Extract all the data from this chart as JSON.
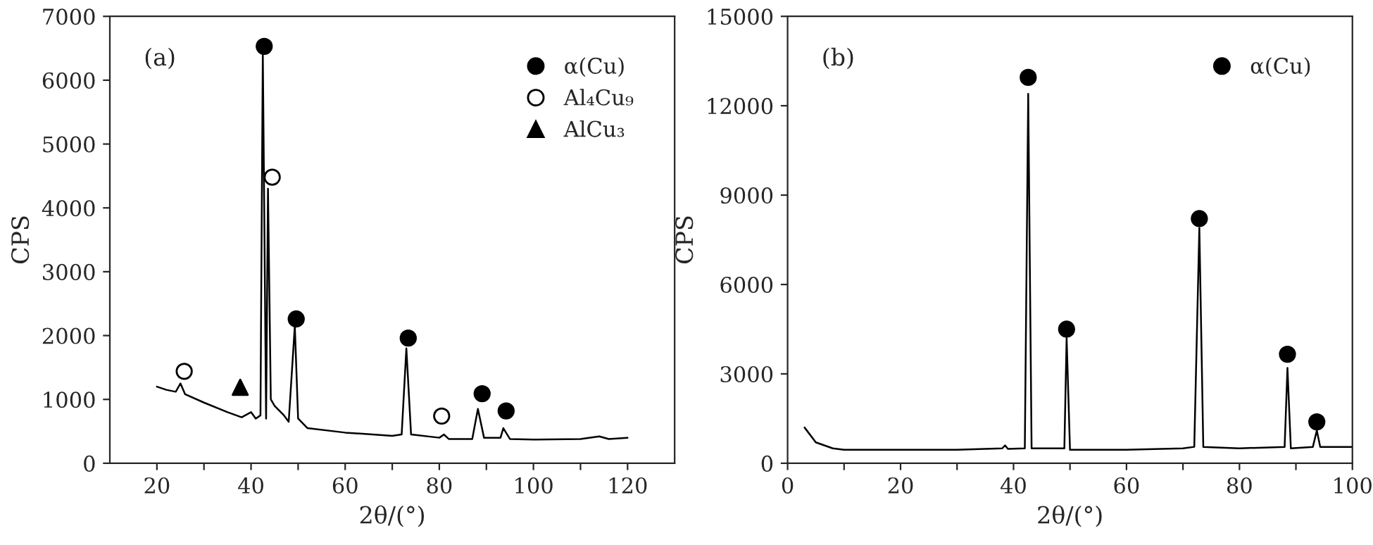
{
  "chart_data": [
    {
      "type": "line",
      "xlabel": "2θ/(°)",
      "ylabel": "CPS",
      "annotations": [
        "(a)"
      ],
      "xlim": [
        10,
        130
      ],
      "ylim": [
        0,
        7000
      ],
      "xticks": [
        20,
        {
          "value": 30,
          "label": null
        },
        40,
        {
          "value": 50,
          "label": null
        },
        60,
        {
          "value": 70,
          "label": null
        },
        80,
        {
          "value": 90,
          "label": null
        },
        100,
        {
          "value": 110,
          "label": null
        },
        120
      ],
      "yticks": [
        0,
        1000,
        2000,
        3000,
        4000,
        5000,
        6000,
        7000
      ],
      "grid": false,
      "legend": "top right",
      "series": [
        {
          "color": "#000000",
          "x": [
            20,
            22,
            24,
            25,
            26,
            30,
            35,
            38,
            40,
            41,
            42,
            42.5,
            43.2,
            43.6,
            44.2,
            45,
            47,
            48,
            49.3,
            50,
            52,
            60,
            70,
            72,
            73,
            74,
            80,
            81,
            82,
            87,
            88.2,
            89.5,
            93,
            93.6,
            95,
            100,
            110,
            114,
            116,
            120
          ],
          "values": [
            1200,
            1150,
            1120,
            1250,
            1080,
            950,
            800,
            720,
            800,
            700,
            750,
            6450,
            700,
            4300,
            1000,
            900,
            750,
            650,
            2150,
            700,
            550,
            480,
            430,
            450,
            1800,
            450,
            400,
            450,
            380,
            380,
            850,
            400,
            400,
            550,
            380,
            370,
            380,
            420,
            380,
            400
          ]
        },
        {
          "type": "scatter",
          "name": "α(Cu)",
          "color": "#000000",
          "marker": "circle",
          "x": [
            42.8,
            49.6,
            73.4,
            89.1,
            94.2
          ],
          "values": [
            6530,
            2260,
            1960,
            1090,
            820
          ]
        },
        {
          "type": "scatter",
          "name": "Al₄Cu₉",
          "color": "#ffffff",
          "marker": "circle",
          "x": [
            25.8,
            44.5,
            80.5
          ],
          "values": [
            1440,
            4480,
            740
          ]
        },
        {
          "type": "scatter",
          "name": "AlCu₃",
          "color": "#000000",
          "marker": "triangle",
          "x": [
            37.7
          ],
          "values": [
            1190
          ]
        }
      ]
    },
    {
      "type": "line",
      "xlabel": "2θ/(°)",
      "ylabel": "CPS",
      "annotations": [
        "(b)"
      ],
      "xlim": [
        0,
        100
      ],
      "ylim": [
        0,
        15000
      ],
      "xticks": [
        0,
        {
          "value": 10,
          "label": null
        },
        20,
        {
          "value": 30,
          "label": null
        },
        40,
        {
          "value": 50,
          "label": null
        },
        60,
        {
          "value": 70,
          "label": null
        },
        80,
        {
          "value": 90,
          "label": null
        },
        100
      ],
      "yticks": [
        0,
        3000,
        6000,
        9000,
        12000,
        15000
      ],
      "grid": false,
      "legend": "top right",
      "series": [
        {
          "color": "#000000",
          "x": [
            3,
            5,
            8,
            10,
            20,
            30,
            38,
            38.5,
            39,
            42,
            42.6,
            43.2,
            49,
            49.4,
            50.0,
            60,
            70,
            72,
            72.9,
            73.6,
            80,
            88,
            88.5,
            89.1,
            93,
            93.7,
            94.3,
            100
          ],
          "values": [
            1200,
            700,
            500,
            450,
            450,
            450,
            500,
            600,
            480,
            500,
            12400,
            500,
            500,
            4200,
            450,
            450,
            500,
            550,
            7900,
            550,
            500,
            550,
            3200,
            500,
            550,
            1100,
            550,
            550
          ]
        },
        {
          "type": "scatter",
          "name": "α(Cu)",
          "color": "#000000",
          "marker": "circle",
          "x": [
            42.6,
            49.4,
            72.9,
            88.5,
            93.7
          ],
          "values": [
            12950,
            4500,
            8210,
            3660,
            1390
          ]
        }
      ]
    }
  ]
}
